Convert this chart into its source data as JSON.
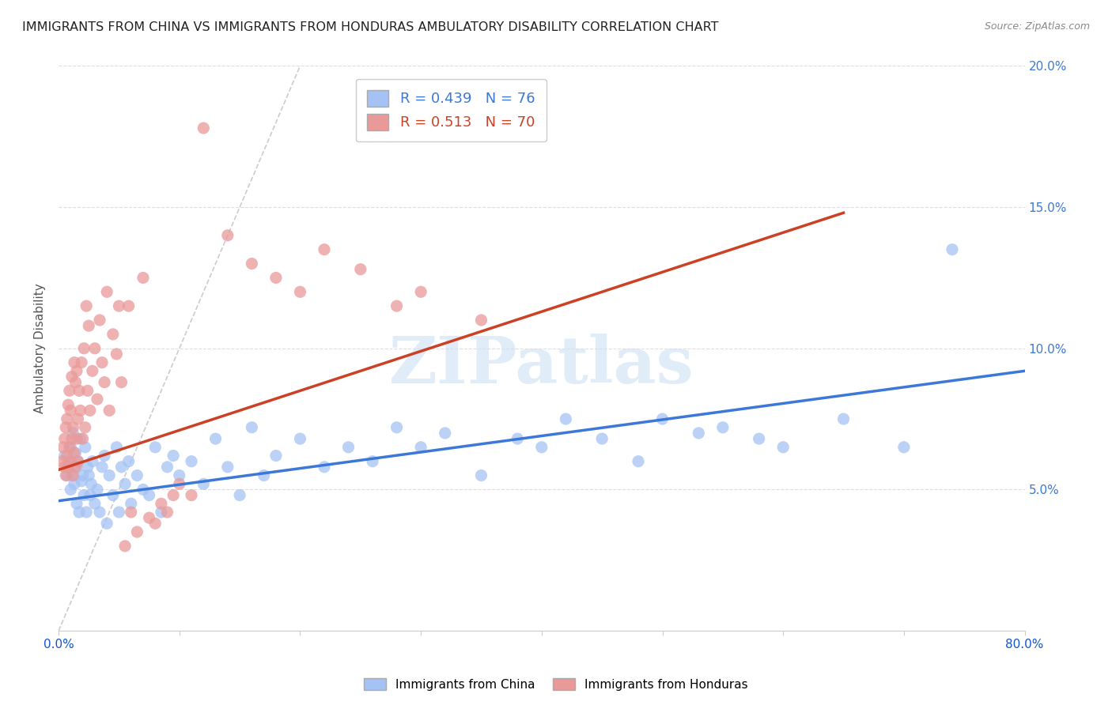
{
  "title": "IMMIGRANTS FROM CHINA VS IMMIGRANTS FROM HONDURAS AMBULATORY DISABILITY CORRELATION CHART",
  "source": "Source: ZipAtlas.com",
  "ylabel": "Ambulatory Disability",
  "x_min": 0.0,
  "x_max": 0.8,
  "y_min": 0.0,
  "y_max": 0.2,
  "china_R": 0.439,
  "china_N": 76,
  "honduras_R": 0.513,
  "honduras_N": 70,
  "china_color": "#a4c2f4",
  "honduras_color": "#ea9999",
  "china_line_color": "#3c78d8",
  "honduras_line_color": "#cc4125",
  "diagonal_color": "#cccccc",
  "background_color": "#ffffff",
  "watermark_text": "ZIPatlas",
  "china_trend_x0": 0.0,
  "china_trend_y0": 0.046,
  "china_trend_x1": 0.8,
  "china_trend_y1": 0.092,
  "honduras_trend_x0": 0.0,
  "honduras_trend_y0": 0.057,
  "honduras_trend_x1": 0.65,
  "honduras_trend_y1": 0.148,
  "china_scatter_x": [
    0.005,
    0.007,
    0.008,
    0.009,
    0.01,
    0.01,
    0.011,
    0.012,
    0.013,
    0.014,
    0.015,
    0.015,
    0.016,
    0.017,
    0.018,
    0.019,
    0.02,
    0.021,
    0.022,
    0.023,
    0.024,
    0.025,
    0.026,
    0.027,
    0.028,
    0.03,
    0.032,
    0.034,
    0.036,
    0.038,
    0.04,
    0.042,
    0.045,
    0.048,
    0.05,
    0.052,
    0.055,
    0.058,
    0.06,
    0.065,
    0.07,
    0.075,
    0.08,
    0.085,
    0.09,
    0.095,
    0.1,
    0.11,
    0.12,
    0.13,
    0.14,
    0.15,
    0.16,
    0.17,
    0.18,
    0.2,
    0.22,
    0.24,
    0.26,
    0.28,
    0.3,
    0.32,
    0.35,
    0.38,
    0.4,
    0.42,
    0.45,
    0.48,
    0.5,
    0.53,
    0.55,
    0.58,
    0.6,
    0.65,
    0.7,
    0.74
  ],
  "china_scatter_y": [
    0.062,
    0.055,
    0.058,
    0.06,
    0.05,
    0.065,
    0.055,
    0.07,
    0.052,
    0.063,
    0.058,
    0.045,
    0.06,
    0.042,
    0.068,
    0.053,
    0.055,
    0.048,
    0.065,
    0.042,
    0.058,
    0.055,
    0.048,
    0.052,
    0.06,
    0.045,
    0.05,
    0.042,
    0.058,
    0.062,
    0.038,
    0.055,
    0.048,
    0.065,
    0.042,
    0.058,
    0.052,
    0.06,
    0.045,
    0.055,
    0.05,
    0.048,
    0.065,
    0.042,
    0.058,
    0.062,
    0.055,
    0.06,
    0.052,
    0.068,
    0.058,
    0.048,
    0.072,
    0.055,
    0.062,
    0.068,
    0.058,
    0.065,
    0.06,
    0.072,
    0.065,
    0.07,
    0.055,
    0.068,
    0.065,
    0.075,
    0.068,
    0.06,
    0.075,
    0.07,
    0.072,
    0.068,
    0.065,
    0.075,
    0.065,
    0.135
  ],
  "honduras_scatter_x": [
    0.003,
    0.004,
    0.005,
    0.005,
    0.006,
    0.006,
    0.007,
    0.007,
    0.008,
    0.008,
    0.009,
    0.009,
    0.01,
    0.01,
    0.011,
    0.011,
    0.012,
    0.012,
    0.013,
    0.013,
    0.014,
    0.014,
    0.015,
    0.015,
    0.016,
    0.016,
    0.017,
    0.018,
    0.019,
    0.02,
    0.021,
    0.022,
    0.023,
    0.024,
    0.025,
    0.026,
    0.028,
    0.03,
    0.032,
    0.034,
    0.036,
    0.038,
    0.04,
    0.042,
    0.045,
    0.048,
    0.05,
    0.052,
    0.055,
    0.058,
    0.06,
    0.065,
    0.07,
    0.075,
    0.08,
    0.085,
    0.09,
    0.095,
    0.1,
    0.11,
    0.12,
    0.14,
    0.16,
    0.18,
    0.2,
    0.22,
    0.25,
    0.28,
    0.3,
    0.35
  ],
  "honduras_scatter_y": [
    0.06,
    0.065,
    0.068,
    0.058,
    0.072,
    0.055,
    0.075,
    0.062,
    0.08,
    0.058,
    0.085,
    0.065,
    0.078,
    0.06,
    0.09,
    0.068,
    0.072,
    0.055,
    0.095,
    0.063,
    0.088,
    0.058,
    0.092,
    0.068,
    0.075,
    0.06,
    0.085,
    0.078,
    0.095,
    0.068,
    0.1,
    0.072,
    0.115,
    0.085,
    0.108,
    0.078,
    0.092,
    0.1,
    0.082,
    0.11,
    0.095,
    0.088,
    0.12,
    0.078,
    0.105,
    0.098,
    0.115,
    0.088,
    0.03,
    0.115,
    0.042,
    0.035,
    0.125,
    0.04,
    0.038,
    0.045,
    0.042,
    0.048,
    0.052,
    0.048,
    0.178,
    0.14,
    0.13,
    0.125,
    0.12,
    0.135,
    0.128,
    0.115,
    0.12,
    0.11
  ]
}
